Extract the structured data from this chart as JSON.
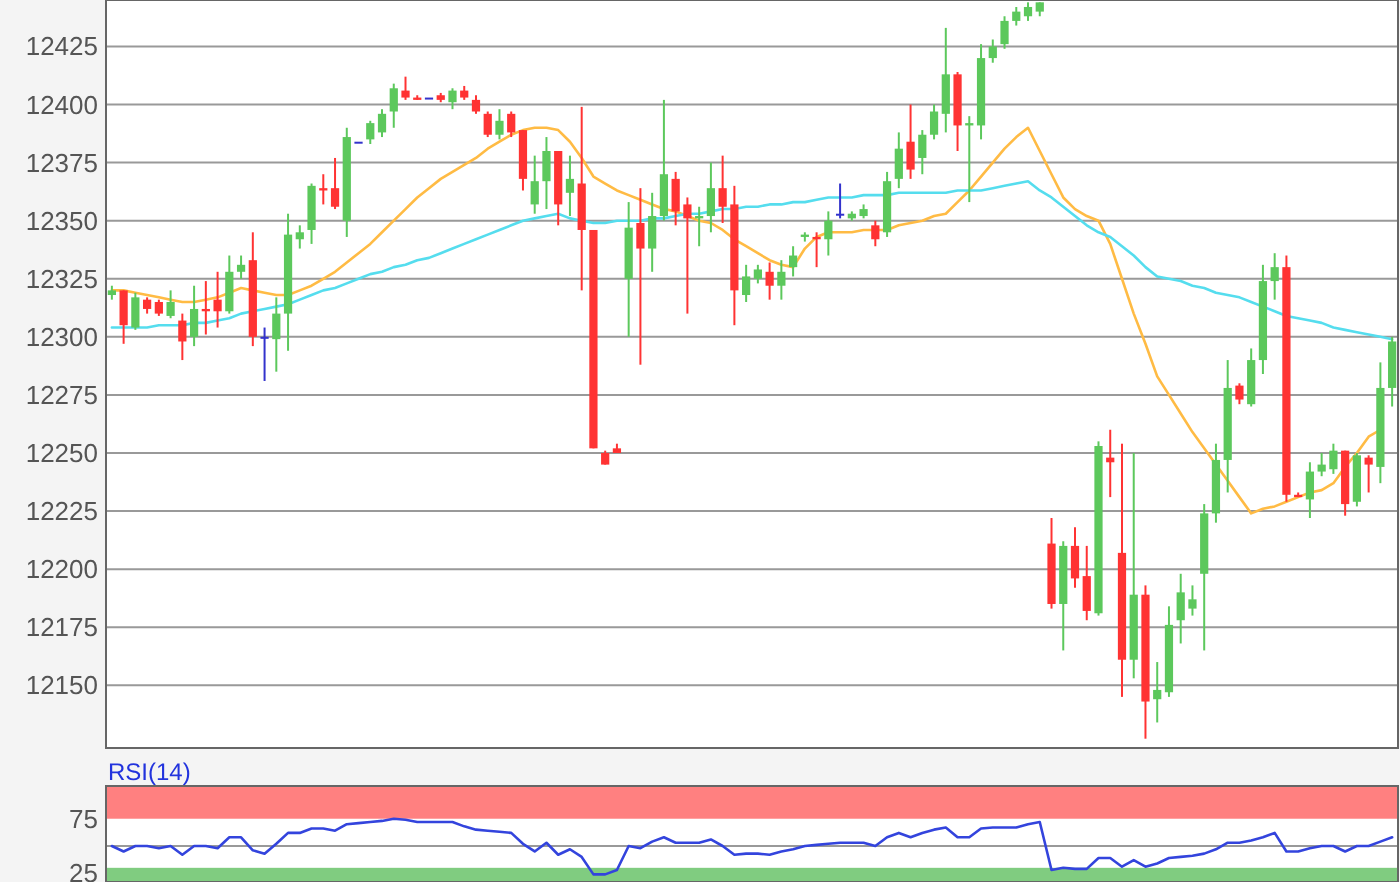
{
  "chart_data": [
    {
      "type": "candlestick",
      "categories": [
        null,
        null,
        null,
        null,
        null,
        null,
        null,
        null,
        null,
        null,
        null,
        null,
        null,
        null,
        null,
        null,
        null,
        null,
        null,
        null,
        null,
        null,
        null,
        null,
        null,
        null,
        null,
        null,
        null,
        null,
        null,
        null,
        null,
        null,
        null,
        null,
        null,
        null,
        null,
        null,
        null,
        null,
        null,
        null,
        null,
        null,
        null,
        null,
        null,
        null,
        null,
        null,
        null,
        null,
        null,
        null,
        null,
        null,
        null,
        null,
        null,
        null,
        null,
        null,
        null,
        null,
        null,
        null,
        null,
        null,
        null,
        null,
        null,
        null,
        null,
        null,
        null,
        null,
        null,
        null,
        null,
        null,
        null,
        null,
        null,
        null,
        null,
        null,
        null,
        null,
        null,
        null,
        null,
        null,
        null,
        null,
        null,
        null,
        null,
        null,
        null,
        null,
        null,
        null,
        null,
        null,
        null,
        null,
        null,
        null
      ],
      "ylim": [
        12123,
        12445
      ],
      "yticks": [
        12150,
        12175,
        12200,
        12225,
        12250,
        12275,
        12300,
        12325,
        12350,
        12375,
        12400,
        12425
      ],
      "grid": "y",
      "tick_labels": "y",
      "ohlc": [
        [
          12318,
          12322,
          12316,
          12320
        ],
        [
          12320,
          12320,
          12297,
          12305
        ],
        [
          12304,
          12319,
          12303,
          12317
        ],
        [
          12316,
          12317,
          12310,
          12312
        ],
        [
          12315,
          12316,
          12309,
          12310
        ],
        [
          12309,
          12320,
          12308,
          12315
        ],
        [
          12307,
          12310,
          12290,
          12298
        ],
        [
          12300,
          12322,
          12296,
          12312
        ],
        [
          12312,
          12324,
          12301,
          12311
        ],
        [
          12316,
          12328,
          12304,
          12311
        ],
        [
          12311,
          12335,
          12310,
          12328
        ],
        [
          12328,
          12335,
          12325,
          12331
        ],
        [
          12333,
          12345,
          12296,
          12300
        ],
        [
          12300,
          12304,
          12281,
          12300
        ],
        [
          12299,
          12317,
          12285,
          12310
        ],
        [
          12310,
          12353,
          12294,
          12344
        ],
        [
          12342,
          12348,
          12338,
          12345
        ],
        [
          12346,
          12366,
          12340,
          12365
        ],
        [
          12364,
          12370,
          12357,
          12363
        ],
        [
          12364,
          12377,
          12355,
          12356
        ],
        [
          12350,
          12390,
          12343,
          12386
        ],
        [
          12384,
          12384,
          12384,
          12384
        ],
        [
          12385,
          12393,
          12383,
          12392
        ],
        [
          12388,
          12398,
          12386,
          12396
        ],
        [
          12397,
          12409,
          12390,
          12407
        ],
        [
          12406,
          12412,
          12402,
          12403
        ],
        [
          12403,
          12404,
          12402,
          12402
        ],
        [
          12403,
          12403,
          12403,
          12403
        ],
        [
          12404,
          12405,
          12401,
          12402
        ],
        [
          12401,
          12407,
          12398,
          12406
        ],
        [
          12406,
          12408,
          12402,
          12403
        ],
        [
          12402,
          12404,
          12396,
          12397
        ],
        [
          12396,
          12397,
          12386,
          12387
        ],
        [
          12387,
          12398,
          12385,
          12393
        ],
        [
          12396,
          12397,
          12386,
          12388
        ],
        [
          12389,
          12389,
          12363,
          12368
        ],
        [
          12357,
          12378,
          12353,
          12367
        ],
        [
          12367,
          12386,
          12355,
          12380
        ],
        [
          12380,
          12380,
          12348,
          12357
        ],
        [
          12362,
          12378,
          12352,
          12368
        ],
        [
          12366,
          12399,
          12320,
          12346
        ],
        [
          12346,
          12346,
          12252,
          12252
        ],
        [
          12250,
          12251,
          12245,
          12245
        ],
        [
          12252,
          12254,
          12250,
          12250
        ],
        [
          12325,
          12358,
          12300,
          12347
        ],
        [
          12349,
          12364,
          12288,
          12338
        ],
        [
          12338,
          12362,
          12328,
          12352
        ],
        [
          12352,
          12402,
          12350,
          12370
        ],
        [
          12368,
          12371,
          12348,
          12354
        ],
        [
          12357,
          12360,
          12310,
          12351
        ],
        [
          12351,
          12356,
          12339,
          12352
        ],
        [
          12352,
          12375,
          12345,
          12364
        ],
        [
          12364,
          12378,
          12349,
          12356
        ],
        [
          12357,
          12365,
          12305,
          12320
        ],
        [
          12318,
          12331,
          12315,
          12326
        ],
        [
          12325,
          12331,
          12323,
          12329
        ],
        [
          12328,
          12332,
          12316,
          12322
        ],
        [
          12322,
          12333,
          12316,
          12328
        ],
        [
          12330,
          12339,
          12326,
          12335
        ],
        [
          12343,
          12345,
          12341,
          12344
        ],
        [
          12343,
          12345,
          12330,
          12342
        ],
        [
          12342,
          12354,
          12335,
          12350
        ],
        [
          12353,
          12366,
          12351,
          12353
        ],
        [
          12351,
          12354,
          12350,
          12353
        ],
        [
          12352,
          12357,
          12351,
          12355
        ],
        [
          12348,
          12350,
          12339,
          12342
        ],
        [
          12345,
          12371,
          12343,
          12367
        ],
        [
          12368,
          12388,
          12364,
          12381
        ],
        [
          12384,
          12400,
          12368,
          12372
        ],
        [
          12377,
          12389,
          12370,
          12387
        ],
        [
          12387,
          12400,
          12385,
          12397
        ],
        [
          12396,
          12433,
          12388,
          12413
        ],
        [
          12413,
          12414,
          12380,
          12391
        ],
        [
          12391,
          12395,
          12358,
          12392
        ],
        [
          12391,
          12426,
          12385,
          12420
        ],
        [
          12420,
          12428,
          12418,
          12425
        ],
        [
          12426,
          12438,
          12424,
          12436
        ],
        [
          12436,
          12442,
          12434,
          12440
        ],
        [
          12438,
          12444,
          12436,
          12442
        ],
        [
          12440,
          12444,
          12438,
          12444
        ],
        [
          12211,
          12222,
          12183,
          12185
        ],
        [
          12185,
          12212,
          12165,
          12210
        ],
        [
          12210,
          12218,
          12192,
          12196
        ],
        [
          12197,
          12210,
          12178,
          12182
        ],
        [
          12181,
          12255,
          12180,
          12253
        ],
        [
          12248,
          12260,
          12231,
          12246
        ],
        [
          12207,
          12254,
          12145,
          12161
        ],
        [
          12161,
          12250,
          12153,
          12189
        ],
        [
          12189,
          12193,
          12127,
          12143
        ],
        [
          12144,
          12160,
          12134,
          12148
        ],
        [
          12147,
          12184,
          12145,
          12176
        ],
        [
          12178,
          12198,
          12168,
          12190
        ],
        [
          12183,
          12193,
          12180,
          12187
        ],
        [
          12198,
          12228,
          12165,
          12224
        ],
        [
          12224,
          12254,
          12220,
          12247
        ],
        [
          12247,
          12290,
          12233,
          12278
        ],
        [
          12279,
          12280,
          12271,
          12273
        ],
        [
          12271,
          12295,
          12270,
          12290
        ],
        [
          12290,
          12331,
          12284,
          12324
        ],
        [
          12324,
          12336,
          12316,
          12330
        ],
        [
          12330,
          12335,
          12229,
          12232
        ],
        [
          12232,
          12233,
          12231,
          12231
        ],
        [
          12230,
          12246,
          12222,
          12242
        ],
        [
          12242,
          12250,
          12240,
          12245
        ],
        [
          12243,
          12254,
          12241,
          12251
        ],
        [
          12251,
          12251,
          12223,
          12228
        ],
        [
          12229,
          12250,
          12227,
          12249
        ],
        [
          12248,
          12249,
          12233,
          12245
        ],
        [
          12244,
          12289,
          12237,
          12278
        ],
        [
          12278,
          12300,
          12270,
          12298
        ]
      ],
      "colors": [
        "#5cc85c",
        "#ff3333",
        "#5cc85c",
        "#ff3333",
        "#ff3333",
        "#5cc85c",
        "#ff3333",
        "#5cc85c",
        "#ff3333",
        "#ff3333",
        "#5cc85c",
        "#5cc85c",
        "#ff3333",
        "#3333cc",
        "#5cc85c",
        "#5cc85c",
        "#5cc85c",
        "#5cc85c",
        "#ff3333",
        "#ff3333",
        "#5cc85c",
        "#3333cc",
        "#5cc85c",
        "#5cc85c",
        "#5cc85c",
        "#ff3333",
        "#ff3333",
        "#3333cc",
        "#ff3333",
        "#5cc85c",
        "#ff3333",
        "#ff3333",
        "#ff3333",
        "#5cc85c",
        "#ff3333",
        "#ff3333",
        "#5cc85c",
        "#5cc85c",
        "#ff3333",
        "#5cc85c",
        "#ff3333",
        "#ff3333",
        "#ff3333",
        "#ff3333",
        "#5cc85c",
        "#ff3333",
        "#5cc85c",
        "#5cc85c",
        "#ff3333",
        "#ff3333",
        "#5cc85c",
        "#5cc85c",
        "#ff3333",
        "#ff3333",
        "#5cc85c",
        "#5cc85c",
        "#ff3333",
        "#5cc85c",
        "#5cc85c",
        "#5cc85c",
        "#ff3333",
        "#5cc85c",
        "#3333cc",
        "#5cc85c",
        "#5cc85c",
        "#ff3333",
        "#5cc85c",
        "#5cc85c",
        "#ff3333",
        "#5cc85c",
        "#5cc85c",
        "#5cc85c",
        "#ff3333",
        "#5cc85c",
        "#5cc85c",
        "#5cc85c",
        "#5cc85c",
        "#5cc85c",
        "#5cc85c",
        "#5cc85c",
        "#ff3333",
        "#5cc85c",
        "#ff3333",
        "#ff3333",
        "#5cc85c",
        "#ff3333",
        "#ff3333",
        "#5cc85c",
        "#ff3333",
        "#5cc85c",
        "#5cc85c",
        "#5cc85c",
        "#5cc85c",
        "#5cc85c",
        "#5cc85c",
        "#5cc85c",
        "#ff3333",
        "#5cc85c",
        "#5cc85c",
        "#5cc85c",
        "#ff3333",
        "#ff3333",
        "#5cc85c",
        "#5cc85c",
        "#5cc85c",
        "#ff3333",
        "#5cc85c",
        "#ff3333",
        "#5cc85c",
        "#5cc85c"
      ],
      "series": [
        {
          "type": "line",
          "color": "#ffbb44",
          "values": [
            12320,
            12320,
            12319,
            12318,
            12317,
            12316,
            12315,
            12315,
            12316,
            12317,
            12319,
            12321,
            12320,
            12319,
            12318,
            12318,
            12320,
            12322,
            12325,
            12328,
            12332,
            12336,
            12340,
            12345,
            12350,
            12355,
            12360,
            12364,
            12368,
            12371,
            12374,
            12377,
            12381,
            12384,
            12387,
            12389,
            12390,
            12390,
            12389,
            12384,
            12377,
            12369,
            12366,
            12363,
            12361,
            12359,
            12357,
            12355,
            12354,
            12352,
            12350,
            12349,
            12346,
            12342,
            12339,
            12336,
            12333,
            12331,
            12330,
            12338,
            12343,
            12345,
            12345,
            12345,
            12346,
            12346,
            12346,
            12348,
            12349,
            12350,
            12352,
            12353,
            12358,
            12363,
            12369,
            12375,
            12381,
            12386,
            12390,
            12380,
            12370,
            12360,
            12355,
            12352,
            12350,
            12340,
            12325,
            12310,
            12297,
            12283,
            12275,
            12267,
            12259,
            12252,
            12245,
            12238,
            12231,
            12224,
            12226,
            12227,
            12229,
            12231,
            12233,
            12234,
            12237,
            12244,
            12250,
            12257,
            12260,
            null
          ]
        },
        {
          "type": "line",
          "color": "#55ddee",
          "values": [
            12304,
            12304,
            12304,
            12304,
            12305,
            12305,
            12305,
            12306,
            12306,
            12307,
            12308,
            12310,
            12311,
            12312,
            12313,
            12314,
            12316,
            12318,
            12320,
            12321,
            12323,
            12325,
            12327,
            12328,
            12330,
            12331,
            12333,
            12334,
            12336,
            12338,
            12340,
            12342,
            12344,
            12346,
            12348,
            12350,
            12351,
            12352,
            12353,
            12351,
            12350,
            12349,
            12349,
            12350,
            12350,
            12350,
            12351,
            12351,
            12352,
            12353,
            12353,
            12354,
            12355,
            12355,
            12356,
            12356,
            12357,
            12357,
            12358,
            12358,
            12359,
            12360,
            12360,
            12360,
            12361,
            12361,
            12361,
            12362,
            12362,
            12362,
            12362,
            12362,
            12363,
            12363,
            12363,
            12364,
            12365,
            12366,
            12367,
            12363,
            12360,
            12356,
            12352,
            12348,
            12345,
            12343,
            12339,
            12335,
            12330,
            12326,
            12325,
            12324,
            12322,
            12321,
            12319,
            12318,
            12317,
            12315,
            12313,
            12311,
            12309,
            12308,
            12307,
            12306,
            12304,
            12303,
            12302,
            12301,
            12300,
            12299
          ]
        }
      ]
    },
    {
      "type": "line",
      "title": "RSI(14)",
      "categories": [
        null,
        null,
        null,
        null,
        null,
        null,
        null,
        null,
        null,
        null,
        null,
        null,
        null,
        null,
        null,
        null,
        null,
        null,
        null,
        null,
        null,
        null,
        null,
        null,
        null,
        null,
        null,
        null,
        null,
        null,
        null,
        null,
        null,
        null,
        null,
        null,
        null,
        null,
        null,
        null,
        null,
        null,
        null,
        null,
        null,
        null,
        null,
        null,
        null,
        null,
        null,
        null,
        null,
        null,
        null,
        null,
        null,
        null,
        null,
        null,
        null,
        null,
        null,
        null,
        null,
        null,
        null,
        null,
        null,
        null,
        null,
        null,
        null,
        null,
        null,
        null,
        null,
        null,
        null,
        null,
        null,
        null,
        null,
        null,
        null,
        null,
        null,
        null,
        null,
        null,
        null,
        null,
        null,
        null,
        null,
        null,
        null,
        null,
        null,
        null,
        null,
        null,
        null,
        null,
        null,
        null,
        null,
        null,
        null,
        null
      ],
      "ylim": [
        17,
        105
      ],
      "yticks": [
        25,
        75
      ],
      "tick_labels": "y",
      "bands": [
        {
          "axis": "y",
          "from": 75,
          "to": 105,
          "color": "#ff8080"
        },
        {
          "axis": "y",
          "from": 17,
          "to": 30,
          "color": "#80cc80"
        }
      ],
      "ref_lines": [
        {
          "axis": "y",
          "value": 50,
          "color": "#999999"
        }
      ],
      "series": [
        {
          "color": "#3344dd",
          "values": [
            50,
            45,
            50,
            50,
            48,
            50,
            42,
            50,
            50,
            48,
            58,
            58,
            46,
            43,
            52,
            62,
            62,
            66,
            66,
            64,
            70,
            71,
            72,
            73,
            75,
            74,
            72,
            72,
            72,
            72,
            68,
            65,
            64,
            63,
            62,
            52,
            45,
            53,
            42,
            47,
            40,
            24,
            24,
            28,
            50,
            48,
            54,
            58,
            53,
            53,
            53,
            56,
            50,
            42,
            43,
            43,
            42,
            45,
            47,
            50,
            51,
            52,
            53,
            53,
            53,
            50,
            58,
            62,
            58,
            62,
            65,
            67,
            58,
            58,
            66,
            67,
            67,
            67,
            70,
            72,
            28,
            30,
            29,
            29,
            39,
            39,
            31,
            37,
            31,
            34,
            39,
            40,
            41,
            43,
            47,
            53,
            53,
            55,
            58,
            62,
            45,
            45,
            48,
            50,
            50,
            45,
            50,
            50,
            54,
            58
          ]
        }
      ]
    }
  ]
}
